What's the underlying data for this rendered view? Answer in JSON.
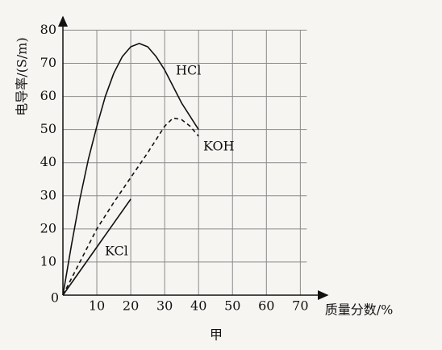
{
  "chart_data": {
    "type": "line",
    "caption": "甲",
    "x_label": "质量分数/%",
    "y_label": "电导率/(S/m)",
    "origin_label": "0",
    "xlim": [
      0,
      78
    ],
    "ylim": [
      0,
      84
    ],
    "xticks": [
      10,
      20,
      30,
      40,
      50,
      60,
      70
    ],
    "yticks": [
      10,
      20,
      30,
      40,
      50,
      60,
      70,
      80
    ],
    "grid": true,
    "series": [
      {
        "name": "HCl",
        "color": "#111111",
        "dashed": false,
        "x": [
          0,
          2.5,
          5,
          7.5,
          10,
          12.5,
          15,
          17.5,
          20,
          22.5,
          25,
          27.5,
          30,
          32.5,
          35,
          37.5,
          40
        ],
        "values": [
          0,
          15,
          29,
          41,
          51,
          60,
          67,
          72,
          75,
          76,
          75,
          72,
          68,
          63,
          58,
          54,
          50
        ]
      },
      {
        "name": "KOH",
        "color": "#111111",
        "dashed": true,
        "x": [
          0,
          5,
          10,
          15,
          20,
          25,
          30,
          32.5,
          35,
          37.5,
          40
        ],
        "values": [
          0,
          10,
          20,
          28,
          35.5,
          43,
          51,
          53.5,
          53,
          51,
          48
        ]
      },
      {
        "name": "KCl",
        "color": "#111111",
        "dashed": false,
        "x": [
          0,
          20
        ],
        "values": [
          0,
          29
        ]
      }
    ]
  }
}
